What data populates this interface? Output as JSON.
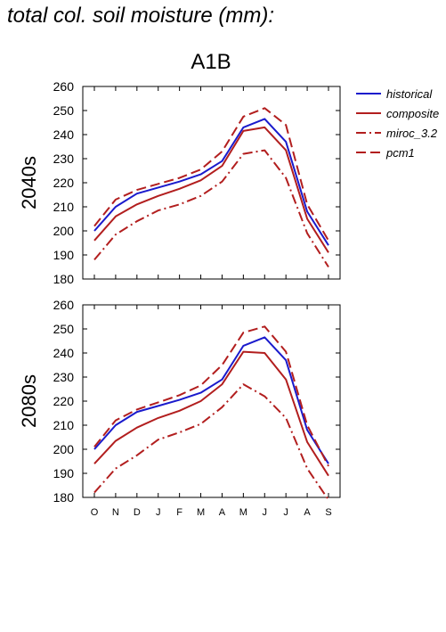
{
  "page": {
    "title": "total col. soil moisture (mm):",
    "scenario": "A1B"
  },
  "chart_data": [
    {
      "type": "line",
      "ylabel": "2040s",
      "ylim": [
        180,
        260
      ],
      "yticks": [
        180,
        190,
        200,
        210,
        220,
        230,
        240,
        250,
        260
      ],
      "categories": [
        "O",
        "N",
        "D",
        "J",
        "F",
        "M",
        "A",
        "M",
        "J",
        "J",
        "A",
        "S"
      ],
      "legend_position": "right",
      "series": [
        {
          "name": "historical",
          "color": "#1a1acc",
          "dash": "solid",
          "values": [
            200,
            210,
            215.5,
            218,
            220.5,
            223.5,
            229,
            243,
            246.5,
            237,
            208,
            194
          ]
        },
        {
          "name": "composite",
          "color": "#b21e1e",
          "dash": "solid",
          "values": [
            196,
            206,
            211,
            214.5,
            217.5,
            221,
            227,
            241.5,
            243,
            233.5,
            205,
            191
          ]
        },
        {
          "name": "miroc_3.2",
          "color": "#b21e1e",
          "dash": "dashdot",
          "values": [
            188,
            198.5,
            204,
            208.5,
            211,
            214.5,
            220.5,
            232,
            233.5,
            222,
            199,
            185
          ]
        },
        {
          "name": "pcm1",
          "color": "#b21e1e",
          "dash": "dashed",
          "values": [
            202,
            213,
            217,
            219.5,
            222,
            225.5,
            233,
            247.5,
            251,
            244,
            211,
            196
          ]
        }
      ]
    },
    {
      "type": "line",
      "ylabel": "2080s",
      "ylim": [
        180,
        260
      ],
      "yticks": [
        180,
        190,
        200,
        210,
        220,
        230,
        240,
        250,
        260
      ],
      "categories": [
        "O",
        "N",
        "D",
        "J",
        "F",
        "M",
        "A",
        "M",
        "J",
        "J",
        "A",
        "S"
      ],
      "series": [
        {
          "name": "historical",
          "color": "#1a1acc",
          "dash": "solid",
          "values": [
            200,
            210,
            215.5,
            218,
            220.5,
            223.5,
            229,
            243,
            246.5,
            237,
            208,
            194
          ]
        },
        {
          "name": "composite",
          "color": "#b21e1e",
          "dash": "solid",
          "values": [
            194,
            203.5,
            209,
            213,
            216,
            220,
            227,
            240.5,
            240,
            229,
            203,
            189
          ]
        },
        {
          "name": "miroc_3.2",
          "color": "#b21e1e",
          "dash": "dashdot",
          "values": [
            182,
            192,
            197.5,
            204,
            207,
            210.5,
            217.5,
            227,
            222,
            213,
            192,
            179
          ]
        },
        {
          "name": "pcm1",
          "color": "#b21e1e",
          "dash": "dashed",
          "values": [
            201,
            212,
            216.5,
            219.5,
            222.5,
            226.5,
            235,
            248.5,
            251,
            240.5,
            210,
            193
          ]
        }
      ]
    }
  ]
}
